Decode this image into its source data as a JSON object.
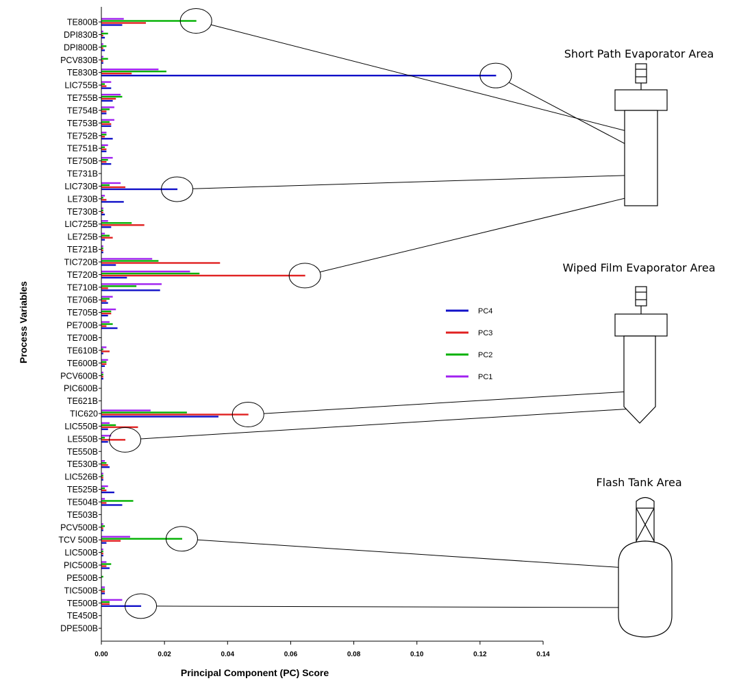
{
  "chart_data": {
    "type": "bar",
    "orientation": "horizontal",
    "xlabel": "Principal Component (PC) Score",
    "ylabel": "Process Variables",
    "xlim": [
      0,
      0.14
    ],
    "xticks": [
      "0.00",
      "0.02",
      "0.04",
      "0.06",
      "0.08",
      "0.10",
      "0.12",
      "0.14"
    ],
    "legend_position": "center-right",
    "categories": [
      "TE800B",
      "DPI830B",
      "DPI800B",
      "PCV830B",
      "TE830B",
      "LIC755B",
      "TE755B",
      "TE754B",
      "TE753B",
      "TE752B",
      "TE751B",
      "TE750B",
      "TE731B",
      "LIC730B",
      "LE730B",
      "TE730B",
      "LIC725B",
      "LE725B",
      "TE721B",
      "TIC720B",
      "TE720B",
      "TE710B",
      "TE706B",
      "TE705B",
      "PE700B",
      "TE700B",
      "TE610B",
      "TE600B",
      "PCV600B",
      "PIC600B",
      "TE621B",
      "TIC620",
      "LIC550B",
      "LE550B",
      "TE550B",
      "TE530B",
      "LIC526B",
      "TE525B",
      "TE504B",
      "TE503B",
      "PCV500B",
      "TCV 500B",
      "LIC500B",
      "PIC500B",
      "PE500B",
      "TIC500B",
      "TE500B",
      "TE450B",
      "DPE500B"
    ],
    "series": [
      {
        "name": "PC1",
        "color": "#a020f0",
        "values": [
          0.007,
          0.0005,
          0.0005,
          0.0005,
          0.018,
          0.003,
          0.006,
          0.004,
          0.004,
          0.0015,
          0.002,
          0.0035,
          0,
          0.006,
          0.001,
          0.0005,
          0.002,
          0.001,
          0.0005,
          0.016,
          0.028,
          0.019,
          0.0035,
          0.0045,
          0.0025,
          0,
          0.0015,
          0.002,
          0.0005,
          0,
          0,
          0.0155,
          0.0025,
          0.003,
          0,
          0.001,
          0.0005,
          0.002,
          0.001,
          0,
          0.0005,
          0.009,
          0.0005,
          0.0015,
          0,
          0.001,
          0.0065,
          0,
          0
        ]
      },
      {
        "name": "PC2",
        "color": "#00b000",
        "values": [
          0.03,
          0.002,
          0.0015,
          0.002,
          0.0205,
          0.001,
          0.0065,
          0.0025,
          0.0025,
          0.0015,
          0.001,
          0.002,
          0,
          0.0025,
          0.0005,
          0.0005,
          0.0095,
          0.0025,
          0.0005,
          0.018,
          0.031,
          0.011,
          0.0025,
          0.003,
          0.0035,
          0,
          0.0005,
          0.0015,
          0.0005,
          0,
          0,
          0.027,
          0.0045,
          0.001,
          0,
          0.0015,
          0.0005,
          0.001,
          0.01,
          0,
          0.001,
          0.0255,
          0.0005,
          0.003,
          0.0005,
          0.001,
          0.0025,
          0,
          0
        ]
      },
      {
        "name": "PC3",
        "color": "#e02020",
        "values": [
          0.014,
          0.0005,
          0.0005,
          0.0005,
          0.0095,
          0.0015,
          0.0045,
          0.0015,
          0.003,
          0.001,
          0.0015,
          0.0015,
          0,
          0.0075,
          0.0015,
          0.0005,
          0.0135,
          0.0035,
          0.0005,
          0.0375,
          0.0645,
          0.002,
          0.0015,
          0.003,
          0.0015,
          0,
          0.0025,
          0.0015,
          0.0005,
          0,
          0,
          0.0465,
          0.0115,
          0.0075,
          0,
          0.002,
          0.0005,
          0.0015,
          0.0015,
          0,
          0.0005,
          0.006,
          0.0005,
          0.0015,
          0,
          0.001,
          0.0025,
          0,
          0
        ]
      },
      {
        "name": "PC4",
        "color": "#1010c8",
        "values": [
          0.0065,
          0.001,
          0.001,
          0.0005,
          0.125,
          0.003,
          0.0035,
          0.0015,
          0.003,
          0.0035,
          0.0015,
          0.003,
          0,
          0.024,
          0.007,
          0.001,
          0.003,
          0.001,
          0.0005,
          0.0045,
          0.008,
          0.0185,
          0.002,
          0.002,
          0.005,
          0,
          0.0005,
          0.001,
          0.0005,
          0,
          0,
          0.037,
          0.002,
          0.002,
          0,
          0.0025,
          0.0005,
          0.004,
          0.0065,
          0,
          0.0005,
          0.0015,
          0.0005,
          0.0025,
          0,
          0.001,
          0.0125,
          0,
          0
        ]
      }
    ],
    "legend_order": [
      "PC4",
      "PC3",
      "PC2",
      "PC1"
    ],
    "highlights": [
      {
        "category": "TE800B",
        "series": "PC2",
        "target": "short_path_evaporator"
      },
      {
        "category": "TE830B",
        "series": "PC4",
        "target": "short_path_evaporator"
      },
      {
        "category": "LIC730B",
        "series": "PC4",
        "target": "short_path_evaporator"
      },
      {
        "category": "TE720B",
        "series": "PC3",
        "target": "short_path_evaporator"
      },
      {
        "category": "TIC620",
        "series": "PC3",
        "target": "wiped_film_evaporator"
      },
      {
        "category": "LE550B",
        "series": "PC3",
        "target": "wiped_film_evaporator"
      },
      {
        "category": "TCV 500B",
        "series": "PC2",
        "target": "flash_tank"
      },
      {
        "category": "TE500B",
        "series": "PC4",
        "target": "flash_tank"
      }
    ]
  },
  "areas": {
    "short_path_evaporator": {
      "title": "Short Path Evaporator Area"
    },
    "wiped_film_evaporator": {
      "title": "Wiped Film Evaporator Area"
    },
    "flash_tank": {
      "title": "Flash Tank Area"
    }
  }
}
